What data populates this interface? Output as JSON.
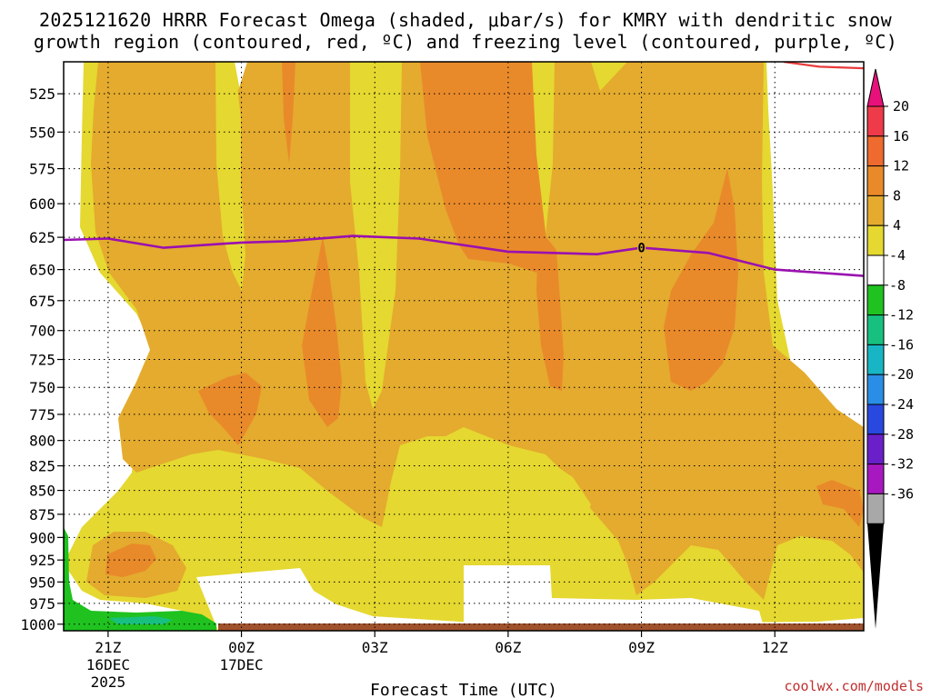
{
  "title": {
    "line1": "2025121620 HRRR Forecast Omega (shaded, μbar/s) for KMRY with dendritic snow",
    "line2": "growth region (contoured, red, ºC) and freezing level (contoured, purple, ºC)"
  },
  "credit": "coolwx.com/models",
  "chart_data": {
    "type": "heatmap",
    "xlabel": "Forecast Time (UTC)",
    "ylabel": "",
    "x_ticks": [
      {
        "label": "21Z",
        "sub1": "16DEC",
        "sub2": "2025",
        "hour": 0
      },
      {
        "label": "00Z",
        "sub1": "17DEC",
        "sub2": "",
        "hour": 3
      },
      {
        "label": "03Z",
        "sub1": "",
        "sub2": "",
        "hour": 6
      },
      {
        "label": "06Z",
        "sub1": "",
        "sub2": "",
        "hour": 9
      },
      {
        "label": "09Z",
        "sub1": "",
        "sub2": "",
        "hour": 12
      },
      {
        "label": "12Z",
        "sub1": "",
        "sub2": "",
        "hour": 15
      }
    ],
    "x_range_hours": [
      -1,
      17
    ],
    "y_ticks": [
      525,
      550,
      575,
      600,
      625,
      650,
      675,
      700,
      725,
      750,
      775,
      800,
      825,
      850,
      875,
      900,
      925,
      950,
      975,
      1000
    ],
    "y_range_mb": [
      505,
      1008
    ],
    "y_scale": "log-pressure",
    "colorbar": {
      "labels": [
        "20",
        "16",
        "12",
        "8",
        "4",
        "-4",
        "-8",
        "-12",
        "-16",
        "-20",
        "-24",
        "-28",
        "-32",
        "-36"
      ],
      "colors": [
        "#ef3a4a",
        "#ee6a2e",
        "#e98a2a",
        "#e4ab2e",
        "#e5d830",
        "#ffffff",
        "#1fc21f",
        "#18c080",
        "#18b6c4",
        "#2a8ee6",
        "#2848e0",
        "#6a20c8",
        "#a818c0",
        "#a8a8a8"
      ],
      "top_arrow_color": "#e8107a",
      "bottom_arrow_color": "#000000"
    },
    "freezing_level": {
      "label": "0",
      "color": "#9a10b0",
      "points": [
        [
          -1,
          627
        ],
        [
          0,
          626
        ],
        [
          1.25,
          633
        ],
        [
          3,
          629
        ],
        [
          4,
          628
        ],
        [
          5.5,
          624
        ],
        [
          7,
          626
        ],
        [
          9,
          636
        ],
        [
          11,
          638
        ],
        [
          12,
          633
        ],
        [
          13.5,
          637
        ],
        [
          15,
          650
        ],
        [
          17,
          655
        ]
      ]
    },
    "dgz_contour": {
      "color": "#e83c3c",
      "points": [
        [
          15.2,
          505
        ],
        [
          16,
          508
        ],
        [
          17,
          509
        ]
      ]
    },
    "colors": {
      "c4_8": "#e5d830",
      "c8_12": "#e4ab2e",
      "c12_16": "#e98a2a",
      "c_neg4_8": "#1fc21f",
      "c_neg8_12": "#18c080",
      "surface": "#a0522d"
    }
  }
}
